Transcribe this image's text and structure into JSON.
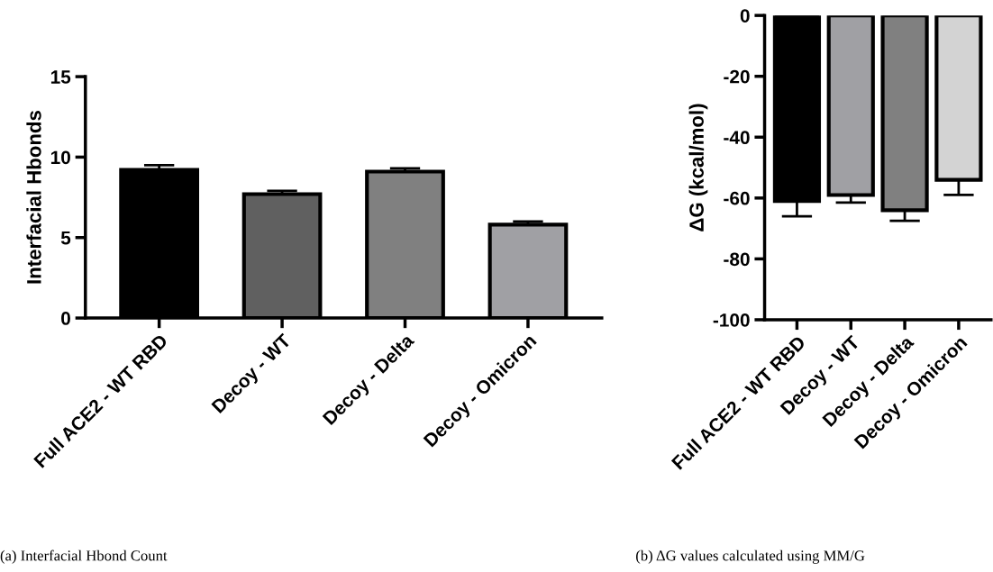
{
  "chart_data": [
    {
      "type": "bar",
      "ylabel": "Interfacial Hbonds",
      "categories": [
        "Full ACE2 - WT RBD",
        "Decoy - WT",
        "Decoy - Delta",
        "Decoy - Omicron"
      ],
      "values": [
        9.2,
        7.7,
        9.1,
        5.8
      ],
      "colors": [
        "#000000",
        "#606060",
        "#808080",
        "#a0a0a4"
      ],
      "errors": [
        [
          9.2,
          9.5
        ],
        [
          7.7,
          7.9
        ],
        [
          9.1,
          9.3
        ],
        [
          5.8,
          6.0
        ]
      ],
      "ylim": [
        0,
        15
      ],
      "yticks": [
        0,
        5,
        10,
        15
      ],
      "grid": false,
      "legend": false,
      "annotations": [
        "(a) Interfacial Hbond Count"
      ]
    },
    {
      "type": "bar",
      "ylabel": "ΔG (kcal/mol)",
      "categories": [
        "Full ACE2 - WT RBD",
        "Decoy - WT",
        "Decoy - Delta",
        "Decoy - Omicron"
      ],
      "values": [
        -61,
        -59,
        -64,
        -54
      ],
      "colors": [
        "#000000",
        "#a0a0a4",
        "#808080",
        "#d3d3d3"
      ],
      "errors": [
        [
          -66,
          -61
        ],
        [
          -61.5,
          -59
        ],
        [
          -67.5,
          -64
        ],
        [
          -59,
          -54
        ]
      ],
      "ylim": [
        -100,
        0
      ],
      "yticks": [
        -100,
        -80,
        -60,
        -40,
        -20,
        0
      ],
      "grid": false,
      "legend": false,
      "annotations": [
        "(b) ΔG values calculated using MM/G"
      ]
    }
  ]
}
